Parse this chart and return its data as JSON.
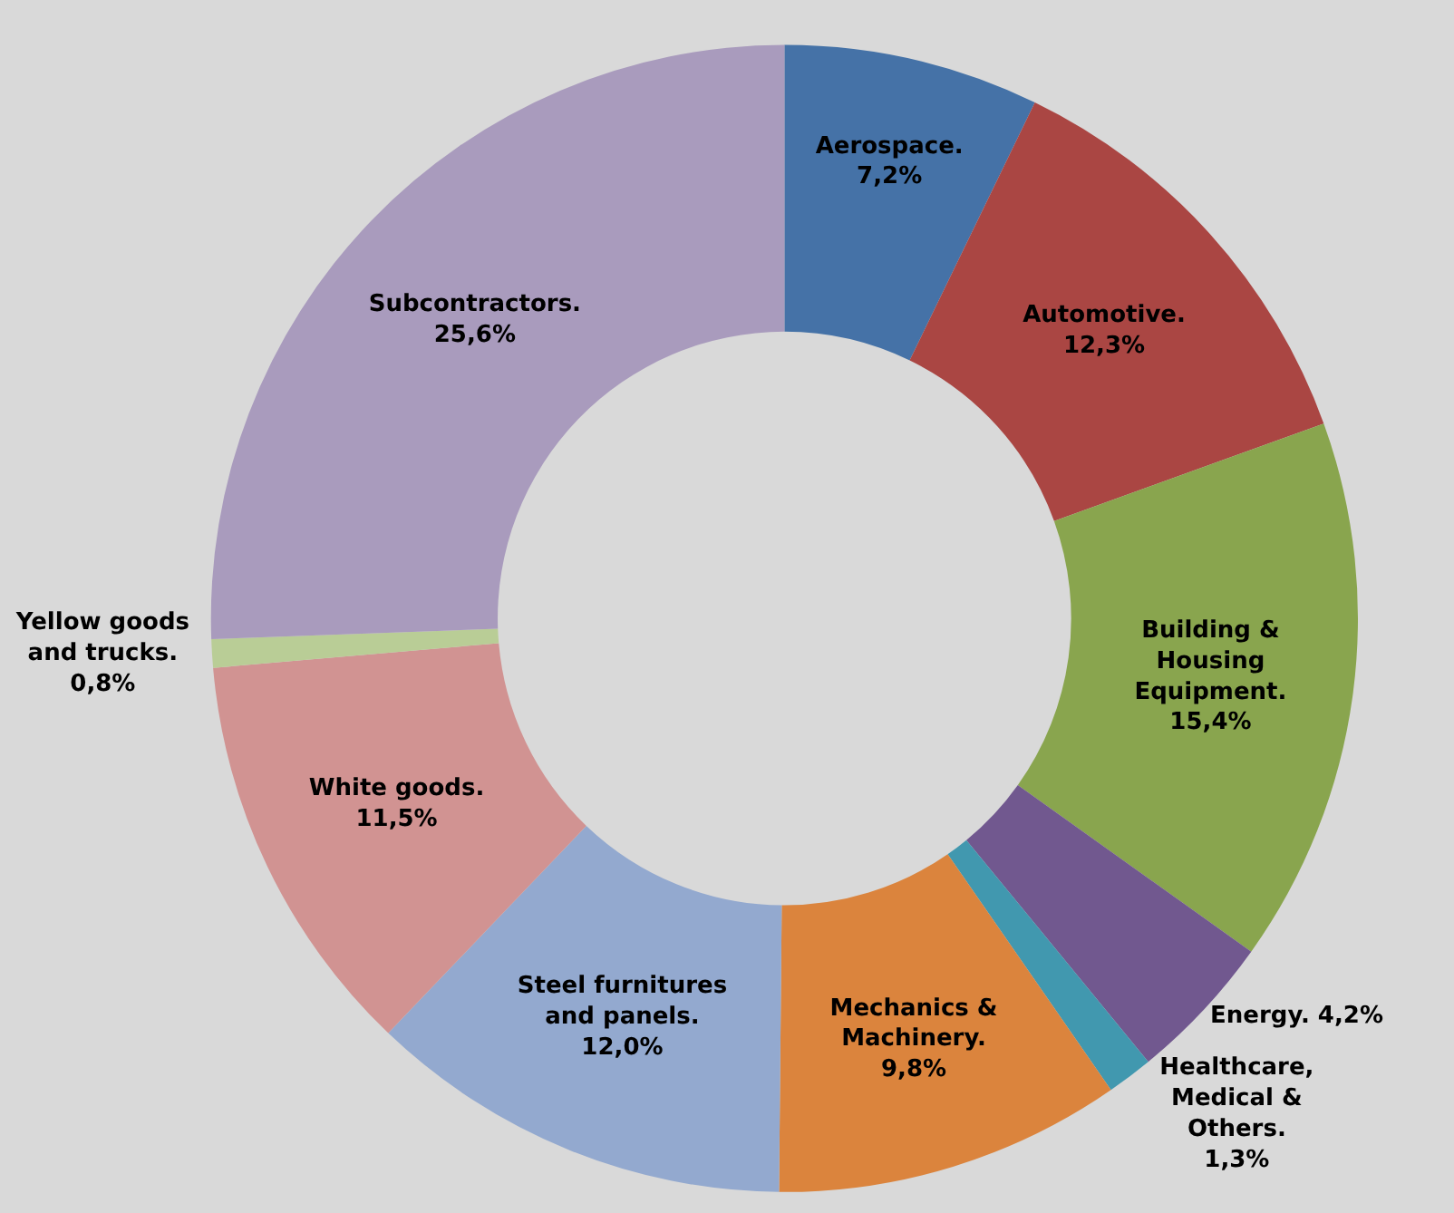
{
  "chart_data": {
    "type": "donut",
    "categories": [
      "Aerospace.",
      "Automotive.",
      "Building &\nHousing\nEquipment.",
      "Energy.",
      "Healthcare,\nMedical &\nOthers.",
      "Mechanics &\nMachinery.",
      "Steel furnitures\nand panels.",
      "White goods.",
      "Yellow goods\nand trucks.",
      "Subcontractors."
    ],
    "values": [
      7.2,
      12.3,
      15.4,
      4.2,
      1.3,
      9.8,
      12.0,
      11.5,
      0.8,
      25.6
    ],
    "value_labels": [
      "7,2%",
      "12,3%",
      "15,4%",
      "4,2%",
      "1,3%",
      "9,8%",
      "12,0%",
      "11,5%",
      "0,8%",
      "25,6%"
    ],
    "colors": [
      "#4572a7",
      "#aa4643",
      "#89a54e",
      "#71588f",
      "#4198af",
      "#db843d",
      "#93a9cf",
      "#d19392",
      "#b9cd96",
      "#a99bbd"
    ],
    "legend": false
  }
}
